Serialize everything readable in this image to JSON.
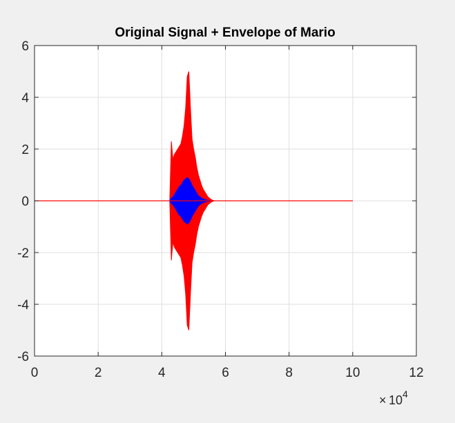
{
  "chart_data": {
    "type": "line",
    "title": "Original Signal + Envelope of Mario",
    "xlabel": "",
    "ylabel": "",
    "xlim": [
      0,
      120000
    ],
    "ylim": [
      -6,
      6
    ],
    "x_ticks": [
      0,
      20000,
      40000,
      60000,
      80000,
      100000,
      120000
    ],
    "x_tick_labels": [
      "0",
      "2",
      "4",
      "6",
      "8",
      "10",
      "12"
    ],
    "x_exponent": {
      "base": "10",
      "power": "4"
    },
    "y_ticks": [
      -6,
      -4,
      -2,
      0,
      2,
      4,
      6
    ],
    "y_tick_labels": [
      "-6",
      "-4",
      "-2",
      "0",
      "2",
      "4",
      "6"
    ],
    "grid": true,
    "legend": "none",
    "series": [
      {
        "kind": "original-signal",
        "color": "#ff0000",
        "x": [
          0,
          42500,
          43000,
          43500,
          44000,
          44500,
          45000,
          45500,
          46000,
          46500,
          47000,
          47500,
          48000,
          48500,
          49000,
          49500,
          50000,
          50500,
          51000,
          51500,
          52000,
          52500,
          53000,
          53500,
          54000,
          54500,
          55000,
          55500,
          56000,
          56500,
          100000
        ],
        "upper": [
          0,
          0,
          2.3,
          1.6,
          1.8,
          1.9,
          2.0,
          2.1,
          2.2,
          2.5,
          2.9,
          3.6,
          4.8,
          5.0,
          3.6,
          2.4,
          2.0,
          1.7,
          1.3,
          1.0,
          0.8,
          0.6,
          0.45,
          0.35,
          0.25,
          0.15,
          0.1,
          0.05,
          0.02,
          0,
          0
        ],
        "lower": [
          0,
          0,
          -2.3,
          -1.6,
          -1.8,
          -1.9,
          -2.0,
          -2.1,
          -2.2,
          -2.5,
          -2.9,
          -3.6,
          -4.8,
          -5.0,
          -3.6,
          -2.4,
          -2.0,
          -1.7,
          -1.3,
          -1.0,
          -0.8,
          -0.6,
          -0.45,
          -0.35,
          -0.25,
          -0.15,
          -0.1,
          -0.05,
          -0.02,
          0,
          0
        ]
      },
      {
        "kind": "envelope",
        "color": "#0000ff",
        "x": [
          0,
          42500,
          43000,
          43500,
          44000,
          44500,
          45000,
          45500,
          46000,
          46500,
          47000,
          47500,
          48000,
          48500,
          49000,
          49500,
          50000,
          50500,
          51000,
          51500,
          52000,
          52500,
          53000,
          53500,
          54000,
          54500,
          55000,
          55500,
          56000,
          100000
        ],
        "upper": [
          0,
          0,
          0.1,
          0.15,
          0.25,
          0.35,
          0.45,
          0.55,
          0.6,
          0.7,
          0.8,
          0.85,
          0.9,
          0.85,
          0.75,
          0.6,
          0.5,
          0.4,
          0.3,
          0.2,
          0.15,
          0.1,
          0.07,
          0.05,
          0.03,
          0.02,
          0.01,
          0,
          0,
          0
        ],
        "lower": [
          0,
          0,
          -0.1,
          -0.15,
          -0.25,
          -0.35,
          -0.45,
          -0.55,
          -0.6,
          -0.7,
          -0.8,
          -0.85,
          -0.9,
          -0.85,
          -0.75,
          -0.6,
          -0.5,
          -0.4,
          -0.3,
          -0.2,
          -0.15,
          -0.1,
          -0.07,
          -0.05,
          -0.03,
          -0.02,
          -0.01,
          0,
          0,
          0
        ]
      }
    ],
    "colors": {
      "figure_bg": "#f0f0f0",
      "axes_bg": "#ffffff",
      "axes_edge": "#262626",
      "grid": "#dfdfdf"
    }
  }
}
